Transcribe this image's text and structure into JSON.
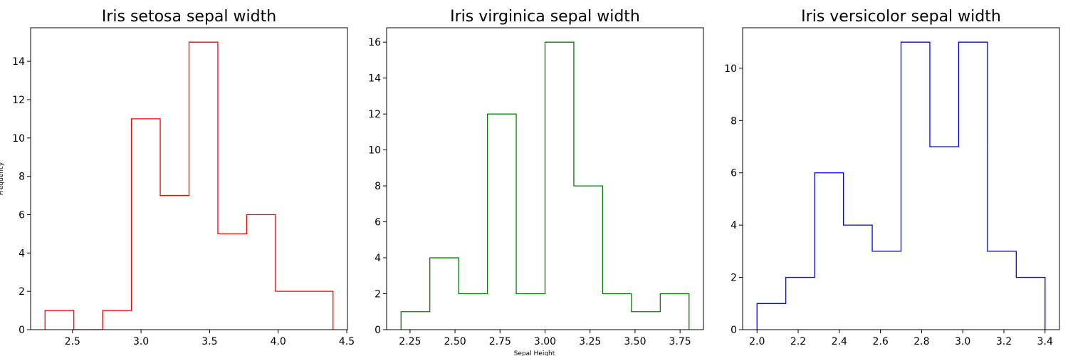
{
  "chart_data": [
    {
      "type": "histogram",
      "title": "Iris setosa sepal width",
      "xlabel": "",
      "ylabel": "Frequency",
      "color": "#ff0000",
      "bin_edges": [
        2.3,
        2.51,
        2.72,
        2.93,
        3.14,
        3.35,
        3.56,
        3.77,
        3.98,
        4.19,
        4.4
      ],
      "values": [
        1,
        0,
        1,
        11,
        7,
        15,
        5,
        6,
        2,
        2
      ],
      "xlim": [
        2.195,
        4.505
      ],
      "ylim": [
        0,
        15.75
      ],
      "xticks": [
        2.5,
        3.0,
        3.5,
        4.0,
        4.5
      ],
      "xtick_labels": [
        "2.5",
        "3.0",
        "3.5",
        "4.0",
        "4.5"
      ],
      "yticks": [
        0,
        2,
        4,
        6,
        8,
        10,
        12,
        14
      ],
      "ytick_labels": [
        "0",
        "2",
        "4",
        "6",
        "8",
        "10",
        "12",
        "14"
      ]
    },
    {
      "type": "histogram",
      "title": "Iris virginica sepal width",
      "xlabel": "Sepal Height",
      "ylabel": "",
      "color": "#008000",
      "bin_edges": [
        2.2,
        2.36,
        2.52,
        2.68,
        2.84,
        3.0,
        3.16,
        3.32,
        3.48,
        3.64,
        3.8
      ],
      "values": [
        1,
        4,
        2,
        12,
        2,
        16,
        8,
        2,
        1,
        2
      ],
      "xlim": [
        2.12,
        3.88
      ],
      "ylim": [
        0,
        16.8
      ],
      "xticks": [
        2.25,
        2.5,
        2.75,
        3.0,
        3.25,
        3.5,
        3.75
      ],
      "xtick_labels": [
        "2.25",
        "2.50",
        "2.75",
        "3.00",
        "3.25",
        "3.50",
        "3.75"
      ],
      "yticks": [
        0,
        2,
        4,
        6,
        8,
        10,
        12,
        14,
        16
      ],
      "ytick_labels": [
        "0",
        "2",
        "4",
        "6",
        "8",
        "10",
        "12",
        "14",
        "16"
      ]
    },
    {
      "type": "histogram",
      "title": "Iris versicolor sepal width",
      "xlabel": "",
      "ylabel": "",
      "color": "#0000ff",
      "bin_edges": [
        2.0,
        2.14,
        2.28,
        2.42,
        2.56,
        2.7,
        2.84,
        2.98,
        3.12,
        3.26,
        3.4
      ],
      "values": [
        1,
        2,
        6,
        4,
        3,
        11,
        7,
        11,
        3,
        2
      ],
      "xlim": [
        1.93,
        3.47
      ],
      "ylim": [
        0,
        11.55
      ],
      "xticks": [
        2.0,
        2.2,
        2.4,
        2.6,
        2.8,
        3.0,
        3.2,
        3.4
      ],
      "xtick_labels": [
        "2.0",
        "2.2",
        "2.4",
        "2.6",
        "2.8",
        "3.0",
        "3.2",
        "3.4"
      ],
      "yticks": [
        0,
        2,
        4,
        6,
        8,
        10
      ],
      "ytick_labels": [
        "0",
        "2",
        "4",
        "6",
        "8",
        "10"
      ]
    }
  ]
}
